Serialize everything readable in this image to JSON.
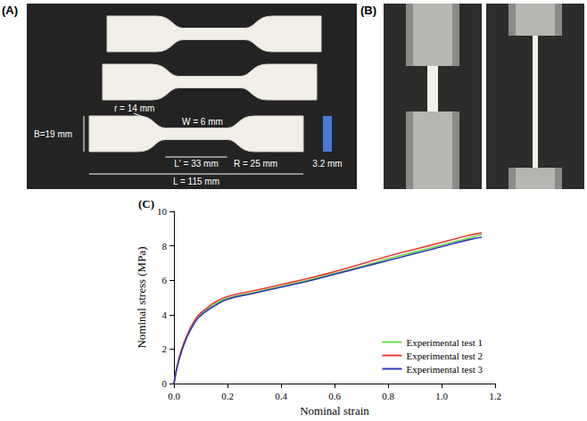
{
  "chart_data": {
    "type": "line",
    "panel_label": "(C)",
    "x_label": "Nominal strain",
    "y_label": "Nominal stress (MPa)",
    "x": [
      0,
      0.02,
      0.05,
      0.08,
      0.1,
      0.12,
      0.15,
      0.2,
      0.3,
      0.4,
      0.5,
      0.6,
      0.7,
      0.8,
      0.9,
      1.0,
      1.1,
      1.15
    ],
    "series": [
      {
        "name": "Experimental test 1",
        "color": "#6fd84a",
        "values": [
          0,
          1.5,
          2.8,
          3.7,
          4.05,
          4.3,
          4.6,
          4.95,
          5.3,
          5.65,
          6.0,
          6.4,
          6.8,
          7.25,
          7.65,
          8.05,
          8.45,
          8.65
        ]
      },
      {
        "name": "Experimental test 2",
        "color": "#e53e36",
        "values": [
          0,
          1.55,
          2.85,
          3.75,
          4.1,
          4.35,
          4.7,
          5.05,
          5.4,
          5.75,
          6.1,
          6.5,
          6.95,
          7.4,
          7.8,
          8.2,
          8.6,
          8.75
        ]
      },
      {
        "name": "Experimental test 3",
        "color": "#2b3cb5",
        "values": [
          0,
          1.45,
          2.75,
          3.6,
          3.95,
          4.2,
          4.5,
          4.9,
          5.25,
          5.6,
          5.95,
          6.35,
          6.75,
          7.15,
          7.55,
          7.95,
          8.35,
          8.5
        ]
      }
    ],
    "xlim": [
      0,
      1.2
    ],
    "xticks": [
      {
        "value": 0,
        "label": "0.0"
      },
      {
        "value": 0.2,
        "label": "0.2"
      },
      {
        "value": 0.4,
        "label": "0.4"
      },
      {
        "value": 0.6,
        "label": "0.6"
      },
      {
        "value": 0.8,
        "label": "0.8"
      },
      {
        "value": 1.0,
        "label": "1.0"
      },
      {
        "value": 1.2,
        "label": "1.2"
      }
    ],
    "ylim": [
      0,
      10
    ],
    "yticks": [
      0,
      2,
      4,
      6,
      8,
      10
    ],
    "grid": false,
    "legend": "lower right",
    "line_style": "solid"
  },
  "figure": {
    "panel_labels": [
      "(A)",
      "(B)"
    ],
    "specimen_dimensions": {
      "B": "B=19 mm",
      "r": "r = 14 mm",
      "R": "R = 25 mm",
      "W": "W = 6 mm",
      "Lg": "L' = 33 mm",
      "L": "L = 115 mm",
      "T": "3.2 mm"
    }
  }
}
